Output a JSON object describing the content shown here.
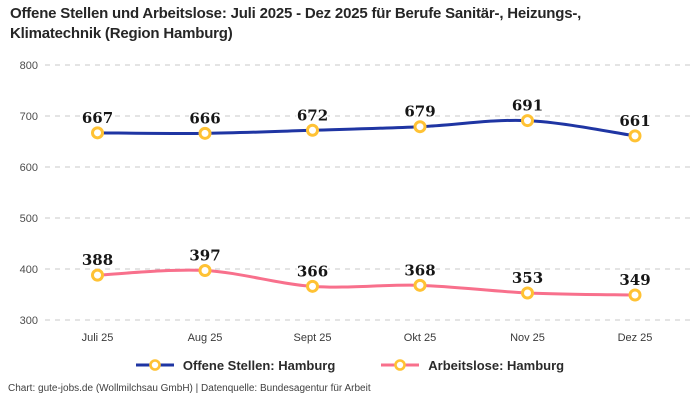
{
  "footer": "Chart: gute-jobs.de (Wollmilchsau GmbH) | Datenquelle: Bundesagentur für Arbeit",
  "colors": {
    "open_positions_line": "#1f35a3",
    "unemployed_line": "#f8708c",
    "marker_stroke": "#ffc234",
    "marker_fill": "#ffffff",
    "grid": "#c9c9c9",
    "data_label": "#161616",
    "axis_label": "#4d4d4d"
  },
  "chart_data": {
    "type": "line",
    "title": "Offene Stellen und Arbeitslose: Juli 2025 - Dez 2025 für Berufe Sanitär-, Heizungs-, Klimatechnik (Region Hamburg)",
    "categories": [
      "Juli 25",
      "Aug 25",
      "Sept 25",
      "Okt 25",
      "Nov 25",
      "Dez 25"
    ],
    "series": [
      {
        "name": "Offene Stellen: Hamburg",
        "color": "#1f35a3",
        "values": [
          667,
          666,
          672,
          679,
          691,
          661
        ]
      },
      {
        "name": "Arbeitslose: Hamburg",
        "color": "#f8708c",
        "values": [
          388,
          397,
          366,
          368,
          353,
          349
        ]
      }
    ],
    "ylim": [
      300,
      800
    ],
    "yticks": [
      300,
      400,
      500,
      600,
      700,
      800
    ],
    "grid": "horizontal-dashed",
    "legend_position": "bottom",
    "data_labels": true,
    "marker": {
      "shape": "ring",
      "fill": "#ffffff",
      "stroke": "#ffc234"
    }
  }
}
